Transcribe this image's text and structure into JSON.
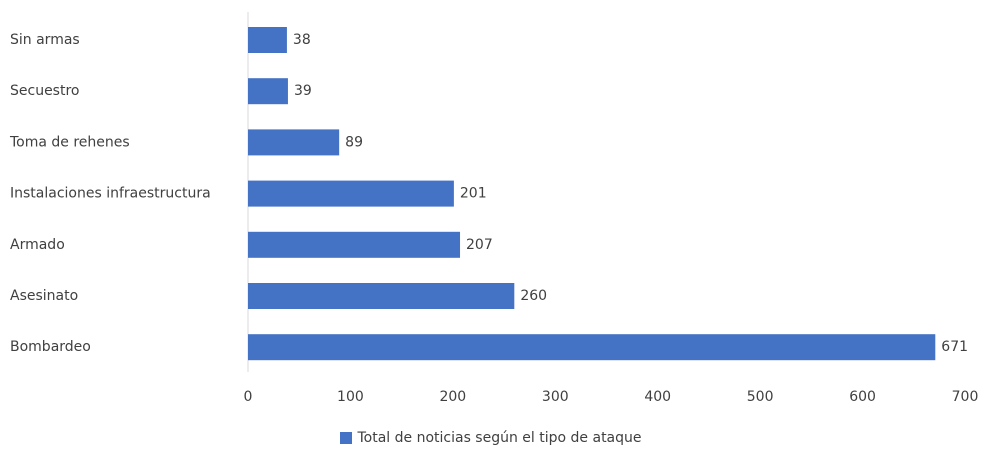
{
  "chart_data": {
    "type": "bar",
    "orientation": "horizontal",
    "categories": [
      "Sin armas",
      "Secuestro",
      "Toma de rehenes",
      "Instalaciones infraestructura",
      "Armado",
      "Asesinato",
      "Bombardeo"
    ],
    "series": [
      {
        "name": "Total de noticias según el tipo de ataque",
        "values": [
          38,
          39,
          89,
          201,
          207,
          260,
          671
        ],
        "color": "#4472c4"
      }
    ],
    "data_labels": [
      "38",
      "39",
      "89",
      "201",
      "207",
      "260",
      "671"
    ],
    "xlim": [
      0,
      700
    ],
    "x_ticks": [
      0,
      100,
      200,
      300,
      400,
      500,
      600,
      700
    ],
    "x_tick_labels": [
      "0",
      "100",
      "200",
      "300",
      "400",
      "500",
      "600",
      "700"
    ],
    "grid": false,
    "legend_position": "bottom"
  }
}
